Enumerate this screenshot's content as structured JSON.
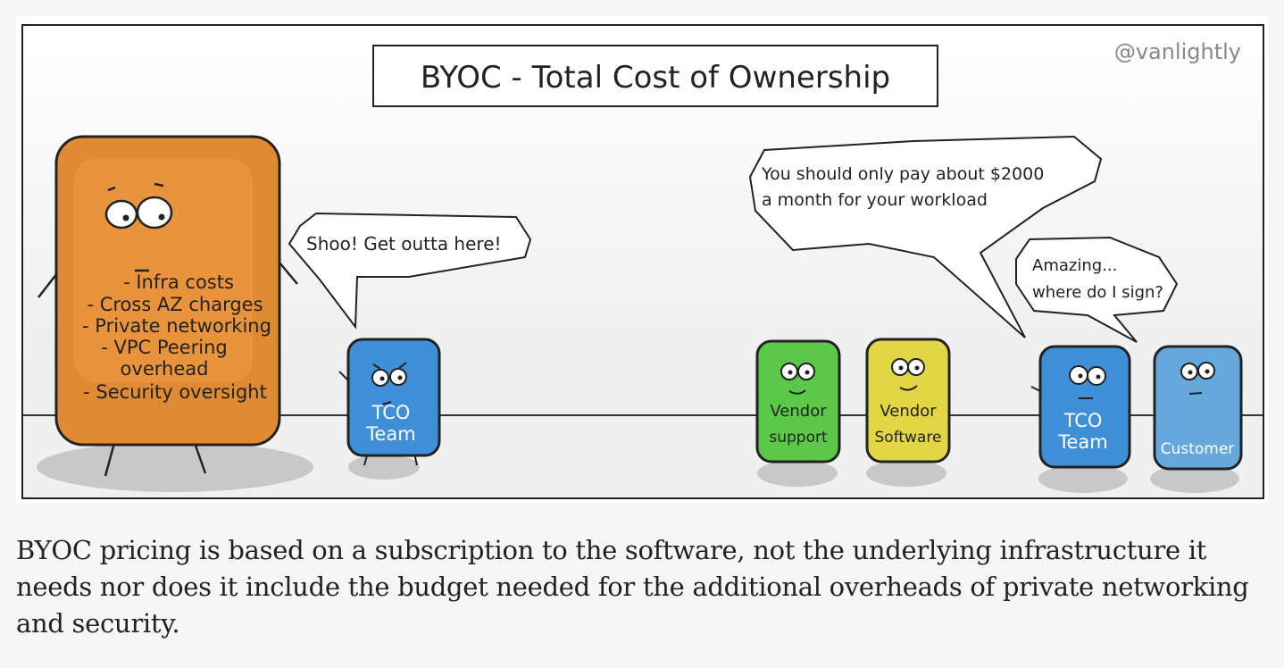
{
  "comic": {
    "title": "BYOC - Total Cost of Ownership",
    "signature": "@vanlightly",
    "characters": {
      "cost_block": {
        "lines": [
          "- Infra costs",
          "- Cross AZ charges",
          "- Private networking",
          "- VPC Peering",
          "overhead",
          "- Security oversight"
        ],
        "color": "#e08a34"
      },
      "tco_team_left": {
        "lines": [
          "TCO",
          "Team"
        ],
        "color": "#3f8fd8"
      },
      "vendor_support": {
        "lines": [
          "Vendor",
          "support"
        ],
        "color": "#5cc84a"
      },
      "vendor_software": {
        "lines": [
          "Vendor",
          "Software"
        ],
        "color": "#e3d645"
      },
      "tco_team_right": {
        "lines": [
          "TCO",
          "Team"
        ],
        "color": "#3f8fd8"
      },
      "customer": {
        "lines": [
          "Customer"
        ],
        "color": "#64a8dc"
      }
    },
    "speech": {
      "tco_left": "Shoo! Get outta here!",
      "tco_right": [
        "You should only pay about $2000",
        "a month for your workload"
      ],
      "customer": [
        "Amazing...",
        "where do I sign?"
      ]
    }
  },
  "caption": "BYOC pricing is based on a subscription to the software, not the underlying infrastructure it needs nor does it include the budget needed for the additional overheads of private networking and security."
}
